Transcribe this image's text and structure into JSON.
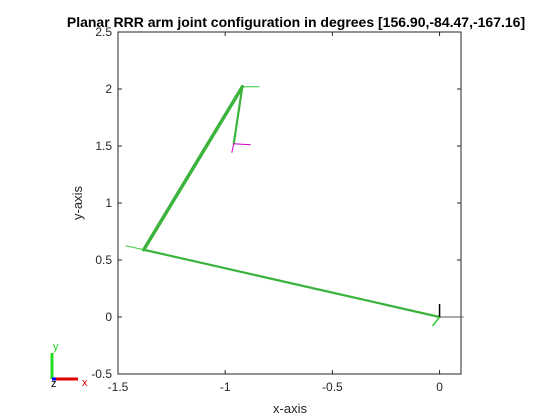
{
  "chart_data": {
    "type": "line",
    "title": "Planar RRR arm joint configuration in degrees [156.90,-84.47,-167.16]",
    "xlabel": "x-axis",
    "ylabel": "y-axis",
    "xlim": [
      -1.5,
      0.1
    ],
    "ylim": [
      -0.5,
      2.5
    ],
    "xticks": [
      -1.5,
      -1,
      -0.5,
      0
    ],
    "xtick_labels": [
      "-1.5",
      "-1",
      "-0.5",
      "0"
    ],
    "yticks": [
      -0.5,
      0,
      0.5,
      1,
      1.5,
      2,
      2.5
    ],
    "ytick_labels": [
      "-0.5",
      "0",
      "0.5",
      "1",
      "1.5",
      "2",
      "2.5"
    ],
    "grid": false,
    "series": [
      {
        "x": [
          0,
          -1.38,
          -0.92,
          -0.96
        ],
        "y": [
          0,
          0.59,
          2.02,
          1.52
        ],
        "color": "#3cb33c"
      }
    ],
    "frame_axes": {
      "x_label": "x",
      "y_label": "y",
      "z_label": "z",
      "x_color": "#e00000",
      "y_color": "#22dd22",
      "z_color": "#0000ff"
    }
  }
}
